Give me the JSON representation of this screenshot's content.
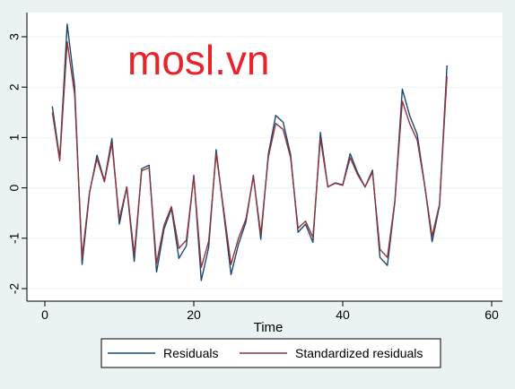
{
  "watermark": "mosl.vn",
  "chart_data": {
    "type": "line",
    "xlabel": "Time",
    "ylabel": "",
    "xlim": [
      0,
      60
    ],
    "ylim": [
      -2.2,
      3.4
    ],
    "xticks": [
      0,
      20,
      40,
      60
    ],
    "yticks": [
      -2,
      -1,
      0,
      1,
      2,
      3
    ],
    "grid": true,
    "legend_position": "bottom",
    "x": [
      1,
      2,
      3,
      4,
      5,
      6,
      7,
      8,
      9,
      10,
      11,
      12,
      13,
      14,
      15,
      16,
      17,
      18,
      19,
      20,
      21,
      22,
      23,
      24,
      25,
      26,
      27,
      28,
      29,
      30,
      31,
      32,
      33,
      34,
      35,
      36,
      37,
      38,
      39,
      40,
      41,
      42,
      43,
      44,
      45,
      46,
      47,
      48,
      49,
      50,
      51,
      52,
      53,
      54
    ],
    "series": [
      {
        "name": "Residuals",
        "color": "#1a476f",
        "values": [
          1.62,
          0.58,
          3.25,
          2.02,
          -1.52,
          -0.1,
          0.65,
          0.14,
          0.98,
          -0.72,
          0.02,
          -1.46,
          0.38,
          0.45,
          -1.67,
          -0.82,
          -0.41,
          -1.4,
          -1.15,
          0.25,
          -1.84,
          -1.18,
          0.76,
          -0.48,
          -1.72,
          -1.12,
          -0.68,
          0.25,
          -1.02,
          0.66,
          1.44,
          1.3,
          0.66,
          -0.88,
          -0.72,
          -1.08,
          1.1,
          0.02,
          0.1,
          0.06,
          0.68,
          0.3,
          0.02,
          0.35,
          -1.38,
          -1.54,
          -0.28,
          1.96,
          1.43,
          1.06,
          0.06,
          -1.07,
          -0.35,
          2.43
        ]
      },
      {
        "name": "Standardized residuals",
        "color": "#90353b",
        "values": [
          1.5,
          0.54,
          2.9,
          1.86,
          -1.38,
          -0.08,
          0.58,
          0.12,
          0.88,
          -0.62,
          0.02,
          -1.32,
          0.34,
          0.4,
          -1.5,
          -0.74,
          -0.37,
          -1.2,
          -1.04,
          0.22,
          -1.58,
          -1.06,
          0.68,
          -0.42,
          -1.52,
          -1.0,
          -0.62,
          0.22,
          -0.92,
          0.6,
          1.28,
          1.16,
          0.6,
          -0.8,
          -0.66,
          -0.98,
          0.98,
          0.02,
          0.09,
          0.05,
          0.6,
          0.26,
          0.02,
          0.31,
          -1.22,
          -1.38,
          -0.26,
          1.72,
          1.27,
          0.95,
          0.05,
          -0.96,
          -0.32,
          2.22
        ]
      }
    ]
  }
}
